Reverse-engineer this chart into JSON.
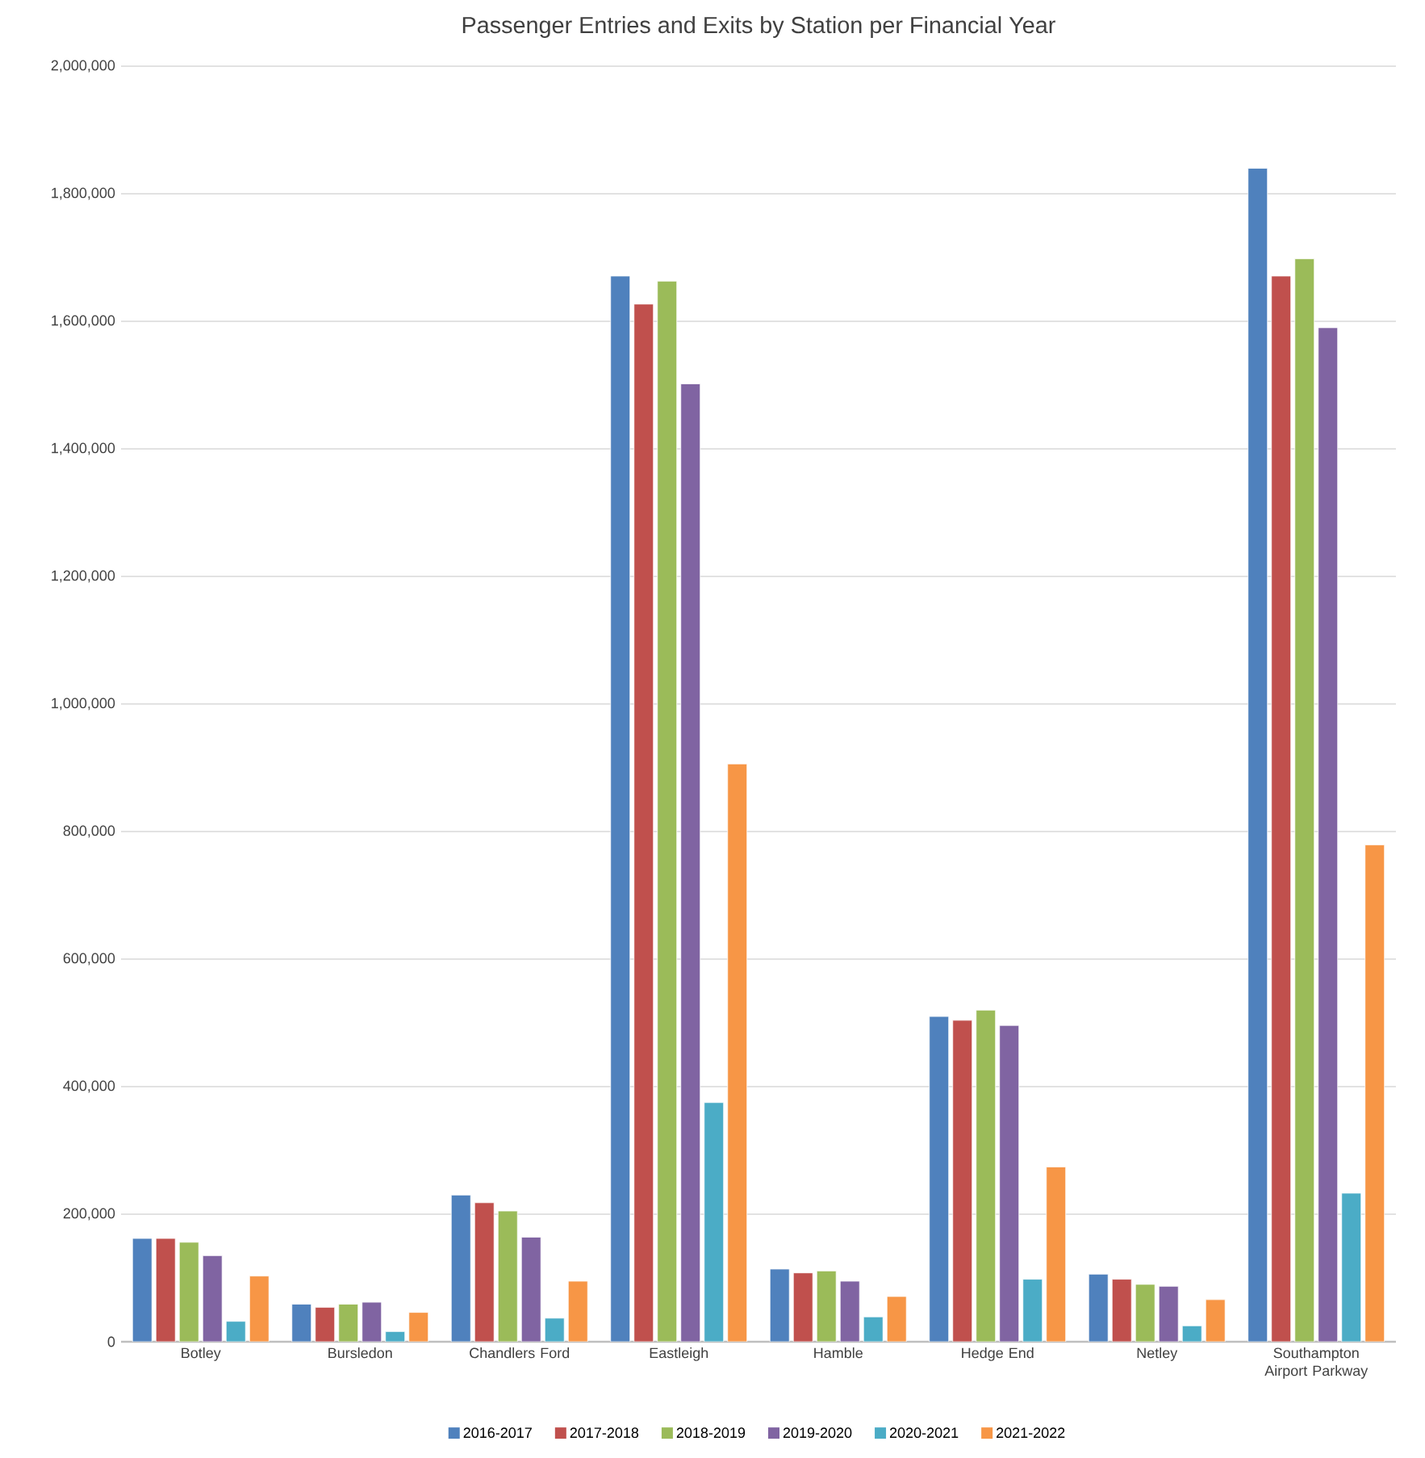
{
  "chart_data": {
    "type": "bar",
    "title": "Passenger Entries and Exits by Station per Financial Year",
    "categories": [
      "Botley",
      "Bursledon",
      "Chandlers Ford",
      "Eastleigh",
      "Hamble",
      "Hedge End",
      "Netley",
      "Southampton Airport Parkway"
    ],
    "series": [
      {
        "name": "2016-2017",
        "color": "#4f81bd",
        "values": [
          162000,
          59000,
          230000,
          1671000,
          114000,
          510000,
          106000,
          1840000
        ]
      },
      {
        "name": "2017-2018",
        "color": "#c0504d",
        "values": [
          162000,
          54000,
          218000,
          1627000,
          108000,
          504000,
          98000,
          1671000
        ]
      },
      {
        "name": "2018-2019",
        "color": "#9bbb59",
        "values": [
          156000,
          59000,
          205000,
          1663000,
          111000,
          520000,
          90000,
          1698000
        ]
      },
      {
        "name": "2019-2020",
        "color": "#8064a2",
        "values": [
          135000,
          62000,
          164000,
          1502000,
          95000,
          496000,
          87000,
          1590000
        ]
      },
      {
        "name": "2020-2021",
        "color": "#4bacc6",
        "values": [
          32000,
          16000,
          37000,
          375000,
          39000,
          98000,
          25000,
          233000
        ]
      },
      {
        "name": "2021-2022",
        "color": "#f79646",
        "values": [
          103000,
          46000,
          95000,
          906000,
          71000,
          274000,
          66000,
          779000
        ]
      }
    ],
    "ylim": [
      0,
      2000000
    ],
    "yticks": [
      {
        "value": 0,
        "label": "0"
      },
      {
        "value": 200000,
        "label": "200,000"
      },
      {
        "value": 400000,
        "label": "400,000"
      },
      {
        "value": 600000,
        "label": "600,000"
      },
      {
        "value": 800000,
        "label": "800,000"
      },
      {
        "value": 1000000,
        "label": "1,000,000"
      },
      {
        "value": 1200000,
        "label": "1,200,000"
      },
      {
        "value": 1400000,
        "label": "1,400,000"
      },
      {
        "value": 1600000,
        "label": "1,600,000"
      },
      {
        "value": 1800000,
        "label": "1,800,000"
      },
      {
        "value": 2000000,
        "label": "2,000,000"
      }
    ],
    "grid": "y",
    "legend": "bottom"
  }
}
